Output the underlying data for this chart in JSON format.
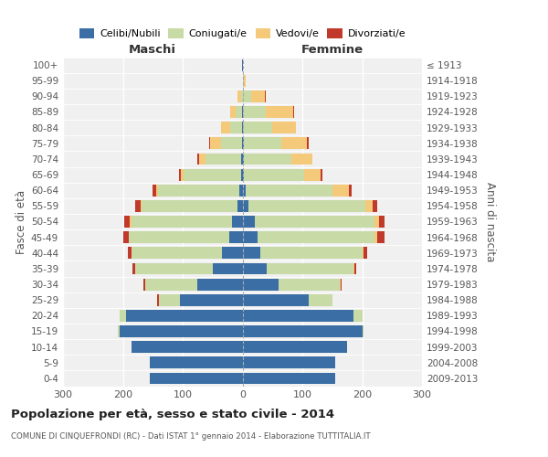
{
  "age_groups": [
    "100+",
    "95-99",
    "90-94",
    "85-89",
    "80-84",
    "75-79",
    "70-74",
    "65-69",
    "60-64",
    "55-59",
    "50-54",
    "45-49",
    "40-44",
    "35-39",
    "30-34",
    "25-29",
    "20-24",
    "15-19",
    "10-14",
    "5-9",
    "0-4"
  ],
  "birth_years": [
    "≤ 1913",
    "1914-1918",
    "1919-1923",
    "1924-1928",
    "1929-1933",
    "1934-1938",
    "1939-1943",
    "1944-1948",
    "1949-1953",
    "1954-1958",
    "1959-1963",
    "1964-1968",
    "1969-1973",
    "1974-1978",
    "1979-1983",
    "1984-1988",
    "1989-1993",
    "1994-1998",
    "1999-2003",
    "2004-2008",
    "2009-2013"
  ],
  "maschi": {
    "celibe": [
      1,
      0,
      0,
      1,
      1,
      1,
      2,
      3,
      6,
      8,
      18,
      22,
      35,
      50,
      75,
      105,
      195,
      205,
      185,
      155,
      155
    ],
    "coniugato": [
      0,
      0,
      3,
      10,
      20,
      35,
      60,
      95,
      135,
      160,
      168,
      168,
      150,
      130,
      88,
      35,
      10,
      3,
      0,
      0,
      0
    ],
    "vedovo": [
      0,
      0,
      5,
      10,
      15,
      18,
      10,
      5,
      4,
      2,
      2,
      0,
      0,
      0,
      0,
      0,
      0,
      0,
      0,
      0,
      0
    ],
    "divorziato": [
      0,
      0,
      0,
      0,
      0,
      2,
      3,
      3,
      5,
      10,
      10,
      10,
      6,
      4,
      2,
      2,
      0,
      0,
      0,
      0,
      0
    ]
  },
  "femmine": {
    "nubile": [
      0,
      0,
      0,
      1,
      1,
      2,
      2,
      3,
      5,
      10,
      20,
      25,
      30,
      40,
      60,
      110,
      185,
      200,
      175,
      155,
      155
    ],
    "coniugata": [
      0,
      2,
      15,
      38,
      48,
      63,
      80,
      100,
      145,
      195,
      200,
      195,
      170,
      145,
      103,
      40,
      15,
      3,
      0,
      0,
      0
    ],
    "vedova": [
      1,
      3,
      22,
      45,
      40,
      43,
      35,
      28,
      28,
      12,
      8,
      5,
      3,
      2,
      1,
      0,
      0,
      0,
      0,
      0,
      0
    ],
    "divorziata": [
      0,
      0,
      2,
      3,
      0,
      2,
      0,
      3,
      5,
      8,
      10,
      12,
      5,
      3,
      2,
      0,
      0,
      0,
      0,
      0,
      0
    ]
  },
  "colors": {
    "celibe": "#3a6ea5",
    "coniugato": "#c8daa6",
    "vedovo": "#f5c97a",
    "divorziato": "#c0392b"
  },
  "legend_labels": [
    "Celibi/Nubili",
    "Coniugati/e",
    "Vedovi/e",
    "Divorziati/e"
  ],
  "title": "Popolazione per età, sesso e stato civile - 2014",
  "subtitle": "COMUNE DI CINQUEFRONDI (RC) - Dati ISTAT 1° gennaio 2014 - Elaborazione TUTTITALIA.IT",
  "label_maschi": "Maschi",
  "label_femmine": "Femmine",
  "ylabel_left": "Fasce di età",
  "ylabel_right": "Anni di nascita",
  "xlim": 300,
  "bg_color": "#f0f0f0"
}
